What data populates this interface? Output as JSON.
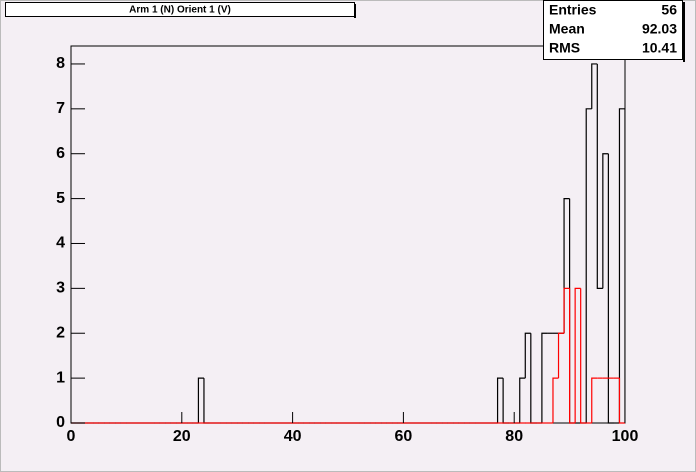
{
  "chart_data": {
    "type": "histogram",
    "title": "Arm 1 (N) Orient 1 (V)",
    "bins": [
      0,
      1,
      2,
      3,
      4,
      5,
      6,
      7,
      8,
      9,
      10,
      11,
      12,
      13,
      14,
      15,
      16,
      17,
      18,
      19,
      20,
      21,
      22,
      23,
      24,
      25,
      26,
      27,
      28,
      29,
      30,
      31,
      32,
      33,
      34,
      35,
      36,
      37,
      38,
      39,
      40,
      41,
      42,
      43,
      44,
      45,
      46,
      47,
      48,
      49,
      50,
      51,
      52,
      53,
      54,
      55,
      56,
      57,
      58,
      59,
      60,
      61,
      62,
      63,
      64,
      65,
      66,
      67,
      68,
      69,
      70,
      71,
      72,
      73,
      74,
      75,
      76,
      77,
      78,
      79,
      80,
      81,
      82,
      83,
      84,
      85,
      86,
      87,
      88,
      89,
      90,
      91,
      92,
      93,
      94,
      95,
      96,
      97,
      98,
      99,
      100
    ],
    "series": [
      {
        "color": "#000000",
        "values": [
          0,
          0,
          0,
          0,
          0,
          0,
          0,
          0,
          0,
          0,
          0,
          0,
          0,
          0,
          0,
          0,
          0,
          0,
          0,
          0,
          0,
          0,
          0,
          1,
          0,
          0,
          0,
          0,
          0,
          0,
          0,
          0,
          0,
          0,
          0,
          0,
          0,
          0,
          0,
          0,
          0,
          0,
          0,
          0,
          0,
          0,
          0,
          0,
          0,
          0,
          0,
          0,
          0,
          0,
          0,
          0,
          0,
          0,
          0,
          0,
          0,
          0,
          0,
          0,
          0,
          0,
          0,
          0,
          0,
          0,
          0,
          0,
          0,
          0,
          0,
          0,
          0,
          1,
          0,
          0,
          0,
          1,
          2,
          0,
          0,
          2,
          2,
          2,
          2,
          5,
          0,
          0,
          0,
          7,
          8,
          3,
          6,
          0,
          0,
          7
        ]
      },
      {
        "color": "#ff0000",
        "values": [
          0,
          0,
          0,
          0,
          0,
          0,
          0,
          0,
          0,
          0,
          0,
          0,
          0,
          0,
          0,
          0,
          0,
          0,
          0,
          0,
          0,
          0,
          0,
          0,
          0,
          0,
          0,
          0,
          0,
          0,
          0,
          0,
          0,
          0,
          0,
          0,
          0,
          0,
          0,
          0,
          0,
          0,
          0,
          0,
          0,
          0,
          0,
          0,
          0,
          0,
          0,
          0,
          0,
          0,
          0,
          0,
          0,
          0,
          0,
          0,
          0,
          0,
          0,
          0,
          0,
          0,
          0,
          0,
          0,
          0,
          0,
          0,
          0,
          0,
          0,
          0,
          0,
          0,
          0,
          0,
          0,
          0,
          0,
          0,
          0,
          0,
          0,
          1,
          2,
          3,
          0,
          3,
          0,
          0,
          1,
          1,
          1,
          1,
          1,
          0
        ]
      }
    ],
    "xlim": [
      0,
      100
    ],
    "ylim": [
      0,
      8.4
    ],
    "xticks": [
      0,
      20,
      40,
      60,
      80,
      100
    ],
    "yticks": [
      0,
      1,
      2,
      3,
      4,
      5,
      6,
      7,
      8
    ],
    "stats": [
      {
        "label": "Entries",
        "value": 56
      },
      {
        "label": "Mean",
        "value": 92.03
      },
      {
        "label": "RMS",
        "value": 10.41
      }
    ]
  }
}
